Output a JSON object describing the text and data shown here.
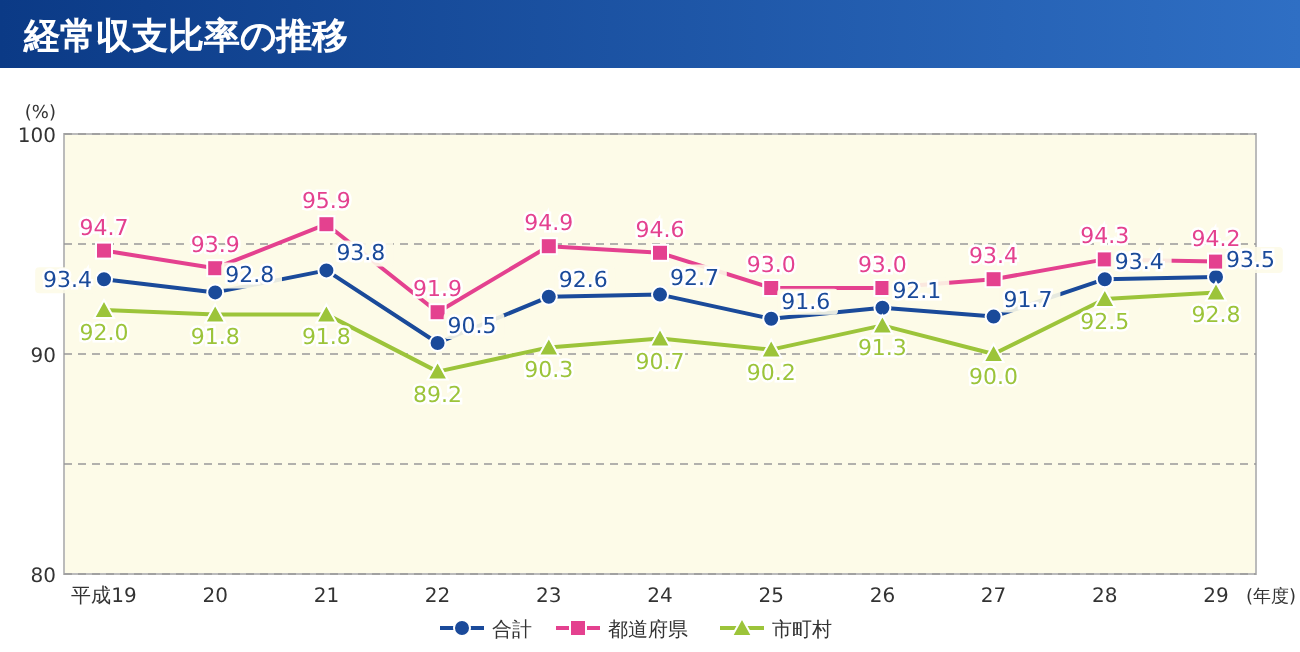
{
  "chart_data": {
    "type": "line",
    "title": "経常収支比率の推移",
    "ylabel": "(%)",
    "xlabel": "(年度)",
    "categories": [
      "平成19",
      "20",
      "21",
      "22",
      "23",
      "24",
      "25",
      "26",
      "27",
      "28",
      "29"
    ],
    "series": [
      {
        "name": "合計",
        "color": "#1a4a9a",
        "marker": "circle",
        "values": [
          93.4,
          92.8,
          93.8,
          90.5,
          92.6,
          92.7,
          91.6,
          92.1,
          91.7,
          93.4,
          93.5
        ],
        "value_labels": [
          "93.4",
          "92.8",
          "93.8",
          "90.5",
          "92.6",
          "92.7",
          "91.6",
          "92.1",
          "91.7",
          "93.4",
          "93.5"
        ]
      },
      {
        "name": "都道府県",
        "color": "#e4418f",
        "marker": "square",
        "values": [
          94.7,
          93.9,
          95.9,
          91.9,
          94.9,
          94.6,
          93.0,
          93.0,
          93.4,
          94.3,
          94.2
        ],
        "value_labels": [
          "94.7",
          "93.9",
          "95.9",
          "91.9",
          "94.9",
          "94.6",
          "93.0",
          "93.0",
          "93.4",
          "94.3",
          "94.2"
        ]
      },
      {
        "name": "市町村",
        "color": "#9cc43a",
        "marker": "triangle",
        "values": [
          92.0,
          91.8,
          91.8,
          89.2,
          90.3,
          90.7,
          90.2,
          91.3,
          90.0,
          92.5,
          92.8
        ],
        "value_labels": [
          "92.0",
          "91.8",
          "91.8",
          "89.2",
          "90.3",
          "90.7",
          "90.2",
          "91.3",
          "90.0",
          "92.5",
          "92.8"
        ]
      }
    ],
    "ylim": [
      80,
      100
    ],
    "yticks": [
      80,
      {
        "value": 85,
        "label": null
      },
      90,
      {
        "value": 95,
        "label": null
      },
      100
    ],
    "grid": "y",
    "legend": "bottom"
  }
}
